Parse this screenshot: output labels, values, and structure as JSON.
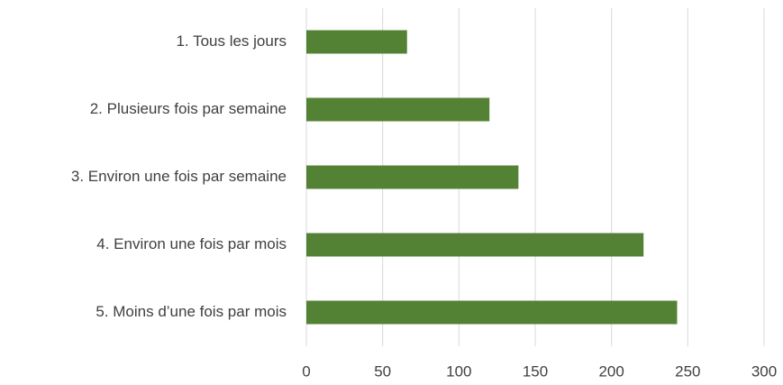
{
  "chart_data": {
    "type": "bar",
    "orientation": "horizontal",
    "categories": [
      "1. Tous les jours",
      "2. Plusieurs fois par semaine",
      "3. Environ une fois par semaine",
      "4. Environ une fois par mois",
      "5. Moins d’une fois par mois"
    ],
    "values": [
      66,
      120,
      139,
      221,
      243
    ],
    "color": "#548235",
    "xlim": [
      0,
      300
    ],
    "xticks": [
      0,
      50,
      100,
      150,
      200,
      250,
      300
    ],
    "grid": true
  }
}
